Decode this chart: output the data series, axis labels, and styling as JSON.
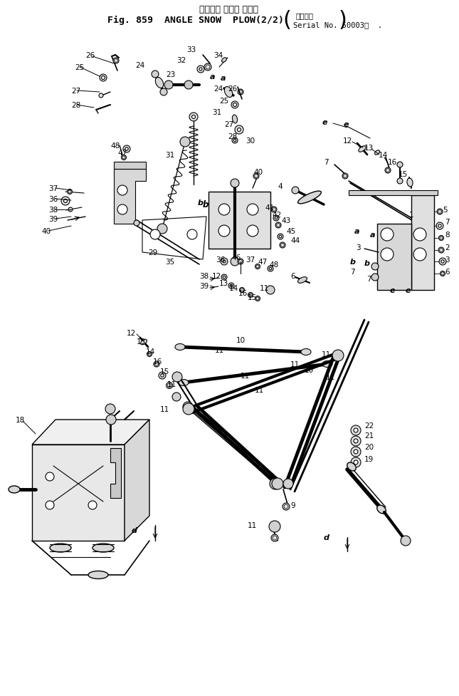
{
  "title_japanese": "アングル スノー プラウ",
  "title_english": "Fig. 859  ANGLE SNOW  PLOW(2/2)",
  "serial_line1": "通用号機",
  "serial_line2": "Serial No. 50003～  .",
  "background_color": "#ffffff",
  "line_color": "#000000",
  "fig_width": 6.45,
  "fig_height": 9.78,
  "dpi": 100
}
